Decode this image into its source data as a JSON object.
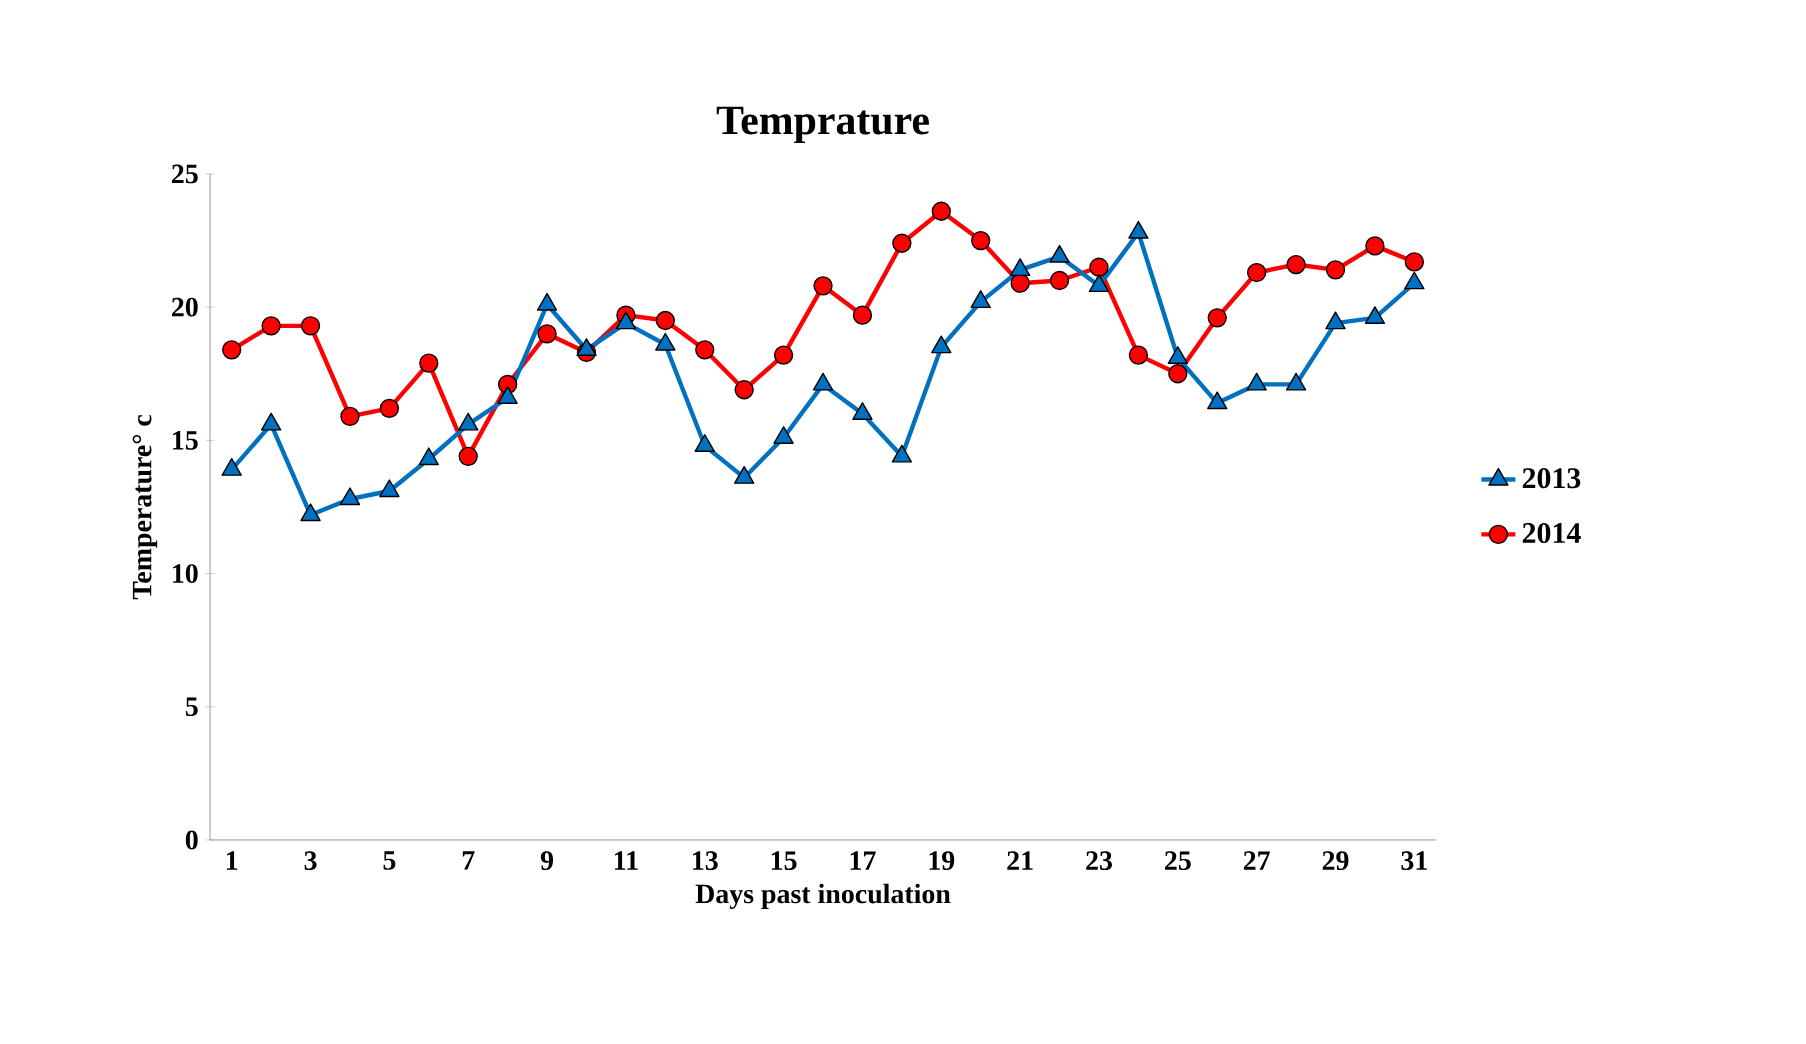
{
  "chart_data": {
    "type": "line",
    "title": "Temprature",
    "xlabel": "Days past inoculation",
    "ylabel": "Temperature° c",
    "categories": [
      "1",
      null,
      "3",
      null,
      "5",
      null,
      "7",
      null,
      "9",
      null,
      "11",
      null,
      "13",
      null,
      "15",
      null,
      "17",
      null,
      "19",
      null,
      "21",
      null,
      "23",
      null,
      "25",
      null,
      "27",
      null,
      "29",
      null,
      "31"
    ],
    "series": [
      {
        "name": "2013",
        "color": "#0070c0",
        "marker": "triangle",
        "values": [
          13.9,
          15.6,
          12.2,
          12.8,
          13.1,
          14.3,
          15.6,
          16.6,
          20.1,
          18.4,
          19.4,
          18.6,
          14.8,
          13.6,
          15.1,
          17.1,
          16.0,
          14.4,
          18.5,
          20.2,
          21.4,
          21.9,
          20.8,
          22.8,
          18.1,
          16.4,
          17.1,
          17.1,
          19.4,
          19.6,
          20.9
        ]
      },
      {
        "name": "2014",
        "color": "#ff0000",
        "marker": "circle",
        "values": [
          18.4,
          19.3,
          19.3,
          15.9,
          16.2,
          17.9,
          14.4,
          17.1,
          19.0,
          18.3,
          19.7,
          19.5,
          18.4,
          16.9,
          18.2,
          20.8,
          19.7,
          22.4,
          23.6,
          22.5,
          20.9,
          21.0,
          21.5,
          18.2,
          17.5,
          19.6,
          21.3,
          21.6,
          21.4,
          22.3,
          21.7
        ]
      }
    ],
    "ylim": [
      0,
      25
    ],
    "yticks": [
      0,
      5,
      10,
      15,
      20,
      25
    ],
    "grid": false,
    "legend": "right",
    "line_style": "solid"
  }
}
